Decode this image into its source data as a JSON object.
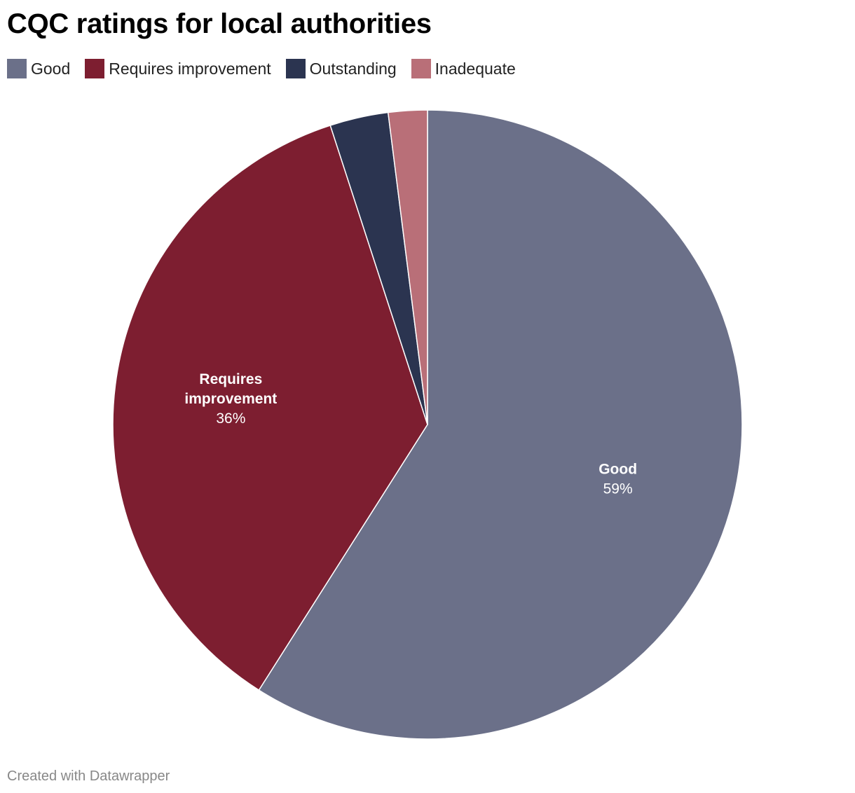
{
  "title": "CQC ratings for local authorities",
  "footer": "Created with Datawrapper",
  "legend": [
    {
      "label": "Good",
      "color": "#6b7089"
    },
    {
      "label": "Requires improvement",
      "color": "#7d1e30"
    },
    {
      "label": "Outstanding",
      "color": "#2b3450"
    },
    {
      "label": "Inadequate",
      "color": "#b96f78"
    }
  ],
  "chart_data": {
    "type": "pie",
    "title": "CQC ratings for local authorities",
    "legend_position": "top-left",
    "slices": [
      {
        "name": "Good",
        "value": 59,
        "label_name": [
          "Good"
        ],
        "label_value": "59%",
        "color": "#6b7089",
        "show_label": true
      },
      {
        "name": "Requires improvement",
        "value": 36,
        "label_name": [
          "Requires",
          "improvement"
        ],
        "label_value": "36%",
        "color": "#7d1e30",
        "show_label": true
      },
      {
        "name": "Outstanding",
        "value": 3,
        "color": "#2b3450",
        "show_label": false
      },
      {
        "name": "Inadequate",
        "value": 2,
        "color": "#b96f78",
        "show_label": false
      }
    ]
  }
}
